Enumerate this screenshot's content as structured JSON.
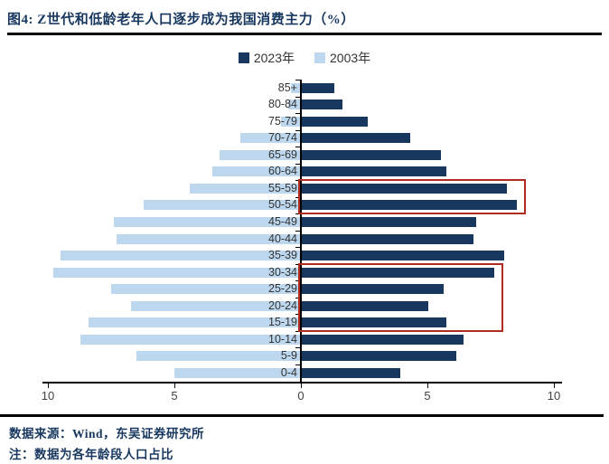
{
  "header": {
    "title": "图4: Z世代和低龄老年人口逐步成为我国消费主力（%）"
  },
  "legend": [
    {
      "label": "2023年",
      "color": "#17375e"
    },
    {
      "label": "2003年",
      "color": "#bdd7ee"
    }
  ],
  "footer": {
    "source": "数据来源：Wind，东吴证券研究所",
    "note": "注：数据为各年龄段人口占比"
  },
  "colors": {
    "series_2023": "#17375e",
    "series_2003": "#bdd7ee",
    "highlight_red": "#b02c22",
    "axis": "#000000",
    "title_navy": "#17375e"
  },
  "chart_data": {
    "type": "bar",
    "subtype": "population-pyramid",
    "title": "图4: Z世代和低龄老年人口逐步成为我国消费主力（%）",
    "xlabel": "",
    "ylabel": "",
    "grid": false,
    "legend_position": "top-center",
    "categories": [
      "85+",
      "80-84",
      "75-79",
      "70-74",
      "65-69",
      "60-64",
      "55-59",
      "50-54",
      "45-49",
      "40-44",
      "35-39",
      "30-34",
      "25-29",
      "20-24",
      "15-19",
      "10-14",
      "5-9",
      "0-4"
    ],
    "series": [
      {
        "name": "2023年",
        "side": "right",
        "color": "#17375e",
        "values": [
          1.3,
          1.6,
          2.6,
          4.3,
          5.5,
          5.7,
          8.1,
          8.5,
          6.9,
          6.8,
          8.0,
          7.6,
          5.6,
          5.0,
          5.7,
          6.4,
          6.1,
          3.9
        ]
      },
      {
        "name": "2003年",
        "side": "left",
        "color": "#bdd7ee",
        "values": [
          0.4,
          0.5,
          0.8,
          2.4,
          3.2,
          3.5,
          4.4,
          6.2,
          7.4,
          7.3,
          9.5,
          9.8,
          7.5,
          6.7,
          8.4,
          8.7,
          6.5,
          5.0
        ]
      }
    ],
    "x_axis": {
      "ticks": [
        "10",
        "5",
        "0",
        "5",
        "10"
      ],
      "tick_values": [
        -10,
        -5,
        0,
        5,
        10
      ],
      "range": [
        -10,
        10
      ],
      "unit": "%"
    },
    "annotations": [
      {
        "type": "box",
        "color": "#b02c22",
        "rows": [
          "55-59",
          "50-54"
        ]
      },
      {
        "type": "box",
        "color": "#b02c22",
        "rows": [
          "30-34",
          "15-19"
        ]
      }
    ]
  }
}
